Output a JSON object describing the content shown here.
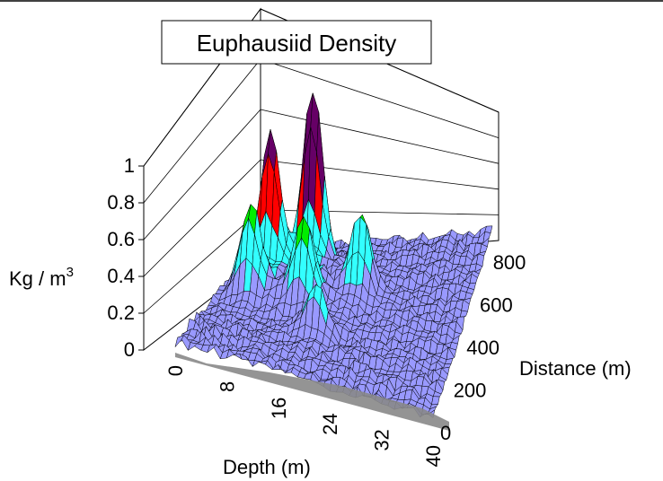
{
  "chart_data": {
    "type": "surface3d",
    "title": "Euphausiid Density",
    "zlabel": "Kg / m",
    "zlabel_superscript": "3",
    "xlabel": "Depth (m)",
    "ylabel": "Distance (m)",
    "z_ticks": [
      "0",
      "0.2",
      "0.4",
      "0.6",
      "0.8",
      "1"
    ],
    "x_ticks": [
      "0",
      "8",
      "16",
      "24",
      "32",
      "40"
    ],
    "y_ticks": [
      "0",
      "200",
      "400",
      "600",
      "800"
    ],
    "zlim": [
      0,
      1
    ],
    "xlim": [
      0,
      40
    ],
    "ylim": [
      0,
      900
    ],
    "color_bands": [
      {
        "range": [
          0,
          0.2
        ],
        "color": "#9999ff"
      },
      {
        "range": [
          0.2,
          0.4
        ],
        "color": "#33ffff"
      },
      {
        "range": [
          0.4,
          0.6
        ],
        "color": "#00ee00"
      },
      {
        "range": [
          0.6,
          0.8
        ],
        "color": "#ff0000"
      },
      {
        "range": [
          0.8,
          1.0
        ],
        "color": "#660066"
      }
    ],
    "peaks": [
      {
        "depth": 6,
        "distance": 620,
        "density": 0.74
      },
      {
        "depth": 12,
        "distance": 700,
        "density": 0.93
      },
      {
        "depth": 5,
        "distance": 470,
        "density": 0.45
      },
      {
        "depth": 14,
        "distance": 450,
        "density": 0.38
      },
      {
        "depth": 22,
        "distance": 560,
        "density": 0.42
      },
      {
        "depth": 18,
        "distance": 300,
        "density": 0.26
      }
    ]
  }
}
